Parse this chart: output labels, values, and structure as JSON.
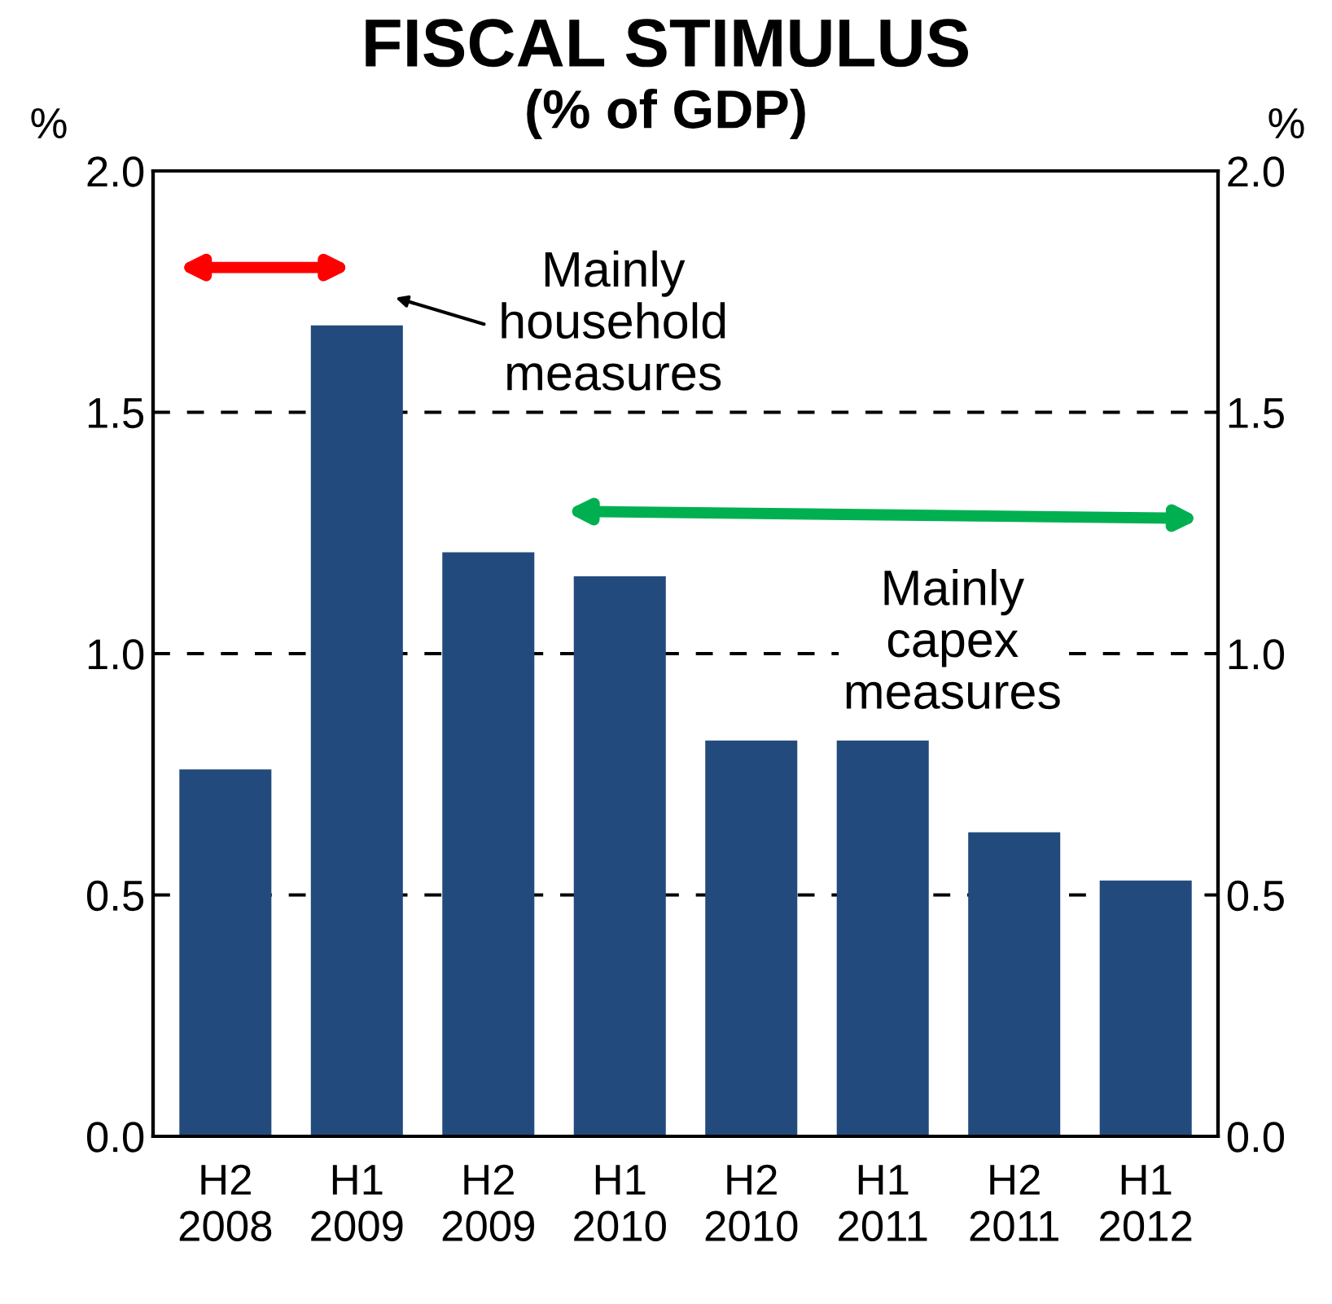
{
  "chart_data": {
    "type": "bar",
    "title": "FISCAL STIMULUS",
    "subtitle": "(% of GDP)",
    "ylabel": "%",
    "y2label": "%",
    "categories": [
      "H2\n2008",
      "H1\n2009",
      "H2\n2009",
      "H1\n2010",
      "H2\n2010",
      "H1\n2011",
      "H2\n2011",
      "H1\n2012"
    ],
    "values": [
      0.76,
      1.68,
      1.21,
      1.16,
      0.82,
      0.82,
      0.63,
      0.53
    ],
    "color": "#234a7c",
    "ylim": [
      0,
      2
    ],
    "yticks": [
      {
        "value": 0,
        "label": "0.0"
      },
      {
        "value": 0.5,
        "label": "0.5"
      },
      {
        "value": 1,
        "label": "1.0"
      },
      {
        "value": 1.5,
        "label": "1.5"
      },
      {
        "value": 2,
        "label": "2.0"
      }
    ],
    "y2lim": [
      0,
      2
    ],
    "y2ticks": [
      {
        "value": 0,
        "label": "0.0"
      },
      {
        "value": 0.5,
        "label": "0.5"
      },
      {
        "value": 1,
        "label": "1.0"
      },
      {
        "value": 1.5,
        "label": "1.5"
      },
      {
        "value": 2,
        "label": "2.0"
      }
    ],
    "grid": "y",
    "annotations": [
      "Mainly\nhousehold\nmeasures",
      "Mainly\ncapex\nmeasures"
    ]
  }
}
